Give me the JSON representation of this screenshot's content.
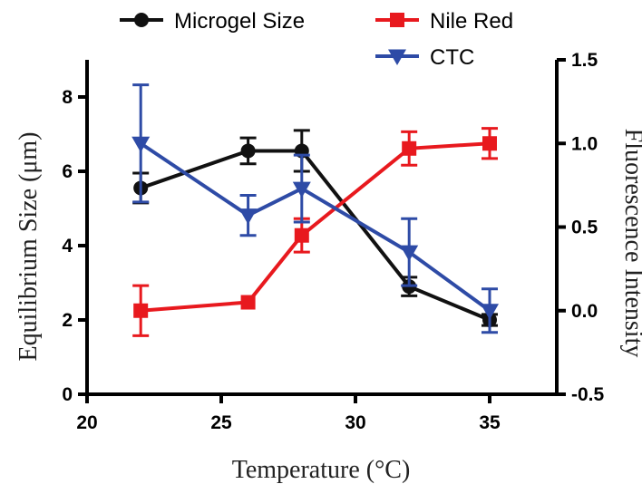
{
  "chart_data": {
    "type": "line",
    "xlabel": "Temperature (°C)",
    "ylabel": "Equilibrium Size (μm)",
    "y2label": "Fluorescence Intensity",
    "xlim": [
      20,
      37.5
    ],
    "ylim": [
      0,
      9
    ],
    "y2lim": [
      -0.5,
      1.5
    ],
    "xticks": [
      20,
      25,
      30,
      35
    ],
    "yticks": [
      0,
      2,
      4,
      6,
      8
    ],
    "y2ticks": [
      -0.5,
      0.0,
      0.5,
      1.0,
      1.5
    ],
    "y2tick_labels": [
      "-0.5",
      "0.0",
      "0.5",
      "1.0",
      "1.5"
    ],
    "grid": false,
    "legend_position": "top",
    "series": [
      {
        "name": "Microgel Size",
        "axis": "left",
        "color": "#111111",
        "marker": "circle",
        "x": [
          22,
          26,
          28,
          32,
          35
        ],
        "y": [
          5.55,
          6.55,
          6.55,
          2.9,
          2.0
        ],
        "err": [
          0.4,
          0.35,
          0.55,
          0.25,
          0.15
        ]
      },
      {
        "name": "Nile Red",
        "axis": "right",
        "color": "#e8191e",
        "marker": "square",
        "x": [
          22,
          26,
          28,
          32,
          35
        ],
        "y": [
          0.0,
          0.05,
          0.45,
          0.97,
          1.0
        ],
        "err": [
          0.15,
          0.0,
          0.1,
          0.1,
          0.09
        ]
      },
      {
        "name": "CTC",
        "axis": "right",
        "color": "#2e4ba6",
        "marker": "triangle-down",
        "x": [
          22,
          26,
          28,
          32,
          35
        ],
        "y": [
          1.0,
          0.57,
          0.73,
          0.35,
          0.0
        ],
        "err": [
          0.35,
          0.12,
          0.2,
          0.2,
          0.13
        ]
      }
    ]
  }
}
